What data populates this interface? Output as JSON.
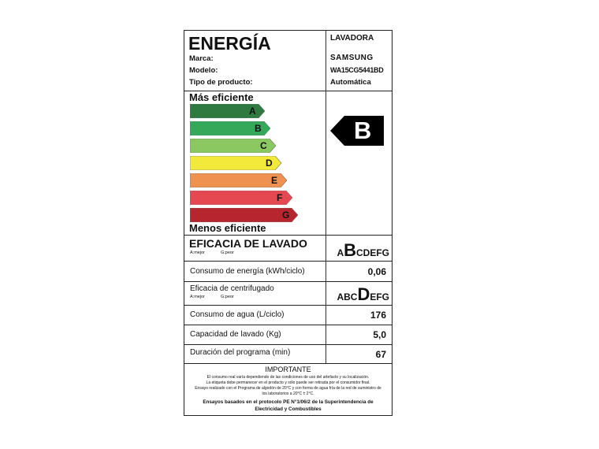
{
  "header": {
    "title": "ENERGÍA",
    "brand_label": "Marca:",
    "model_label": "Modelo:",
    "type_label": "Tipo de producto:",
    "category": "LAVADORA",
    "brand": "SAMSUNG",
    "model": "WA15CG5441BD",
    "type": "Automática"
  },
  "scale": {
    "top_label": "Más eficiente",
    "bottom_label": "Menos eficiente",
    "classes": [
      {
        "letter": "A",
        "color": "#2f7a40"
      },
      {
        "letter": "B",
        "color": "#35a85a"
      },
      {
        "letter": "C",
        "color": "#8bc862"
      },
      {
        "letter": "D",
        "color": "#f2e93b"
      },
      {
        "letter": "E",
        "color": "#ef9150"
      },
      {
        "letter": "F",
        "color": "#e64852"
      },
      {
        "letter": "G",
        "color": "#b7262f"
      }
    ],
    "rating": "B"
  },
  "washing": {
    "label": "EFICACIA DE LAVADO",
    "best": "A:mejor",
    "worst": "G:peor",
    "pre": "A",
    "selected": "B",
    "post": "CDEFG"
  },
  "energy": {
    "label": "Consumo de energía (kWh/ciclo)",
    "value": "0,06"
  },
  "spin": {
    "label": "Eficacia de centrifugado",
    "best": "A:mejor",
    "worst": "G:peor",
    "pre": "ABC",
    "selected": "D",
    "post": "EFG"
  },
  "water": {
    "label": "Consumo de agua (L/ciclo)",
    "value": "176"
  },
  "capacity": {
    "label": "Capacidad de lavado (Kg)",
    "value": "5,0"
  },
  "duration": {
    "label": "Duración del programa (min)",
    "value": "67"
  },
  "footer": {
    "title": "IMPORTANTE",
    "lines": [
      "El consumo real varía dependiendo de las condiciones de uso del artefacto y su localización.",
      "La etiqueta debe permanecer en el producto y sólo puede ser retirada por el consumidor final.",
      "Ensayo realizado con el Programa de algodón de 20°C y con forma de agua fría de la red de suministro de",
      "los laboratorios a 20°C ± 2°C."
    ],
    "bold": "Ensayos basados en el protocolo PE N°1/06/2 de la Superintendencia de Electricidad y Combustibles"
  }
}
